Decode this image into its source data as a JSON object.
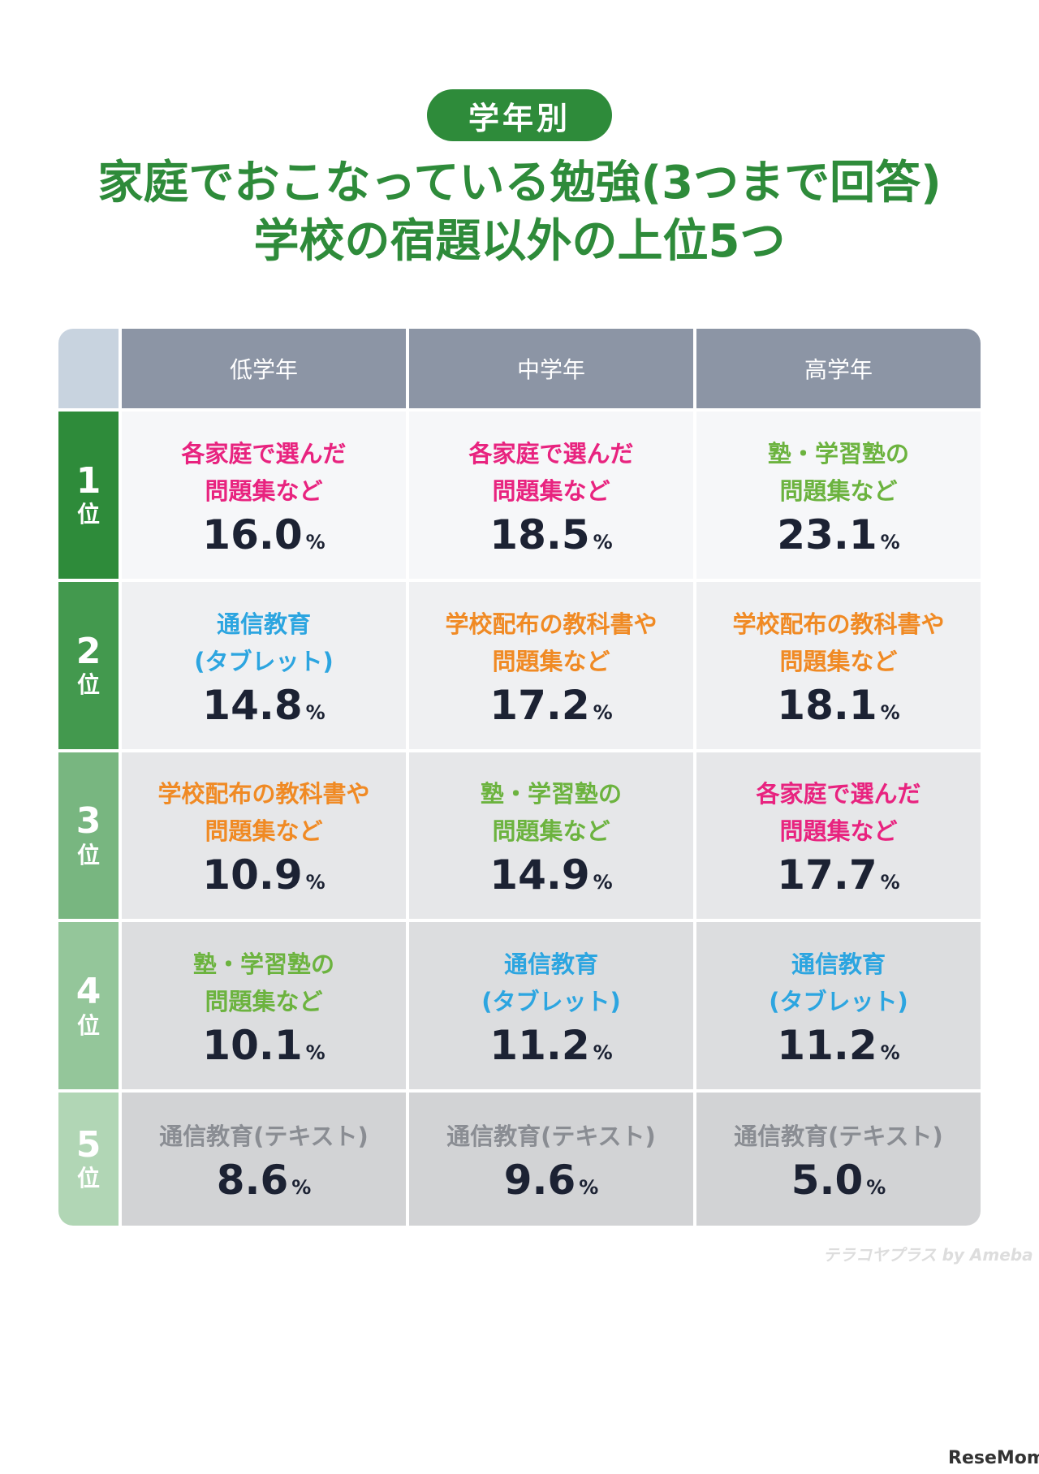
{
  "header": {
    "badge": "学年別",
    "title_line1": "家庭でおこなっている勉強(3つまで回答)",
    "title_line2": "学校の宿題以外の上位5つ"
  },
  "chart_data": {
    "type": "table",
    "columns": [
      "低学年",
      "中学年",
      "高学年"
    ],
    "unit": "%",
    "rank_suffix": "位",
    "rows": [
      {
        "rank": "1",
        "rank_color": "#2e8b3a",
        "cell_bg": "#f6f7f9",
        "cells": [
          {
            "label": "各家庭で選んだ\n問題集など",
            "value": 16.0,
            "display": "16.0",
            "color": "#e8237f"
          },
          {
            "label": "各家庭で選んだ\n問題集など",
            "value": 18.5,
            "display": "18.5",
            "color": "#e8237f"
          },
          {
            "label": "塾・学習塾の\n問題集など",
            "value": 23.1,
            "display": "23.1",
            "color": "#6cb33f"
          }
        ]
      },
      {
        "rank": "2",
        "rank_color": "#43994e",
        "cell_bg": "#eff0f2",
        "cells": [
          {
            "label": "通信教育\n(タブレット)",
            "value": 14.8,
            "display": "14.8",
            "color": "#2ca5e0"
          },
          {
            "label": "学校配布の教科書や\n問題集など",
            "value": 17.2,
            "display": "17.2",
            "color": "#f08a24"
          },
          {
            "label": "学校配布の教科書や\n問題集など",
            "value": 18.1,
            "display": "18.1",
            "color": "#f08a24"
          }
        ]
      },
      {
        "rank": "3",
        "rank_color": "#78b680",
        "cell_bg": "#e6e7e9",
        "cells": [
          {
            "label": "学校配布の教科書や\n問題集など",
            "value": 10.9,
            "display": "10.9",
            "color": "#f08a24"
          },
          {
            "label": "塾・学習塾の\n問題集など",
            "value": 14.9,
            "display": "14.9",
            "color": "#6cb33f"
          },
          {
            "label": "各家庭で選んだ\n問題集など",
            "value": 17.7,
            "display": "17.7",
            "color": "#e8237f"
          }
        ]
      },
      {
        "rank": "4",
        "rank_color": "#94c69a",
        "cell_bg": "#dcdddf",
        "cells": [
          {
            "label": "塾・学習塾の\n問題集など",
            "value": 10.1,
            "display": "10.1",
            "color": "#6cb33f"
          },
          {
            "label": "通信教育\n(タブレット)",
            "value": 11.2,
            "display": "11.2",
            "color": "#2ca5e0"
          },
          {
            "label": "通信教育\n(タブレット)",
            "value": 11.2,
            "display": "11.2",
            "color": "#2ca5e0"
          }
        ]
      },
      {
        "rank": "5",
        "rank_color": "#b1d6b5",
        "cell_bg": "#d2d3d5",
        "cells": [
          {
            "label": "通信教育(テキスト)",
            "value": 8.6,
            "display": "8.6",
            "color": "#8a8d93"
          },
          {
            "label": "通信教育(テキスト)",
            "value": 9.6,
            "display": "9.6",
            "color": "#8a8d93"
          },
          {
            "label": "通信教育(テキスト)",
            "value": 5.0,
            "display": "5.0",
            "color": "#8a8d93"
          }
        ]
      }
    ]
  },
  "watermarks": {
    "terakoya": "テラコヤプラス by Ameba",
    "resemom": "ReseMom"
  }
}
